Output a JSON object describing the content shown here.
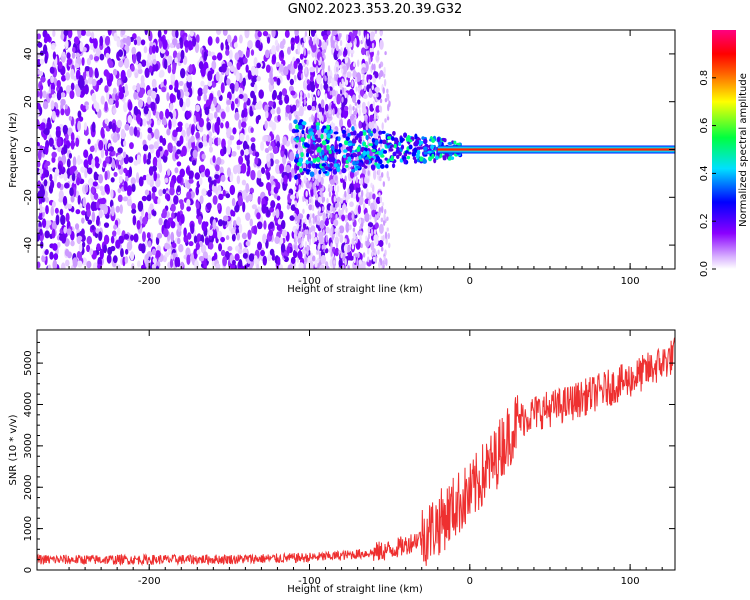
{
  "title": "GN02.2023.353.20.39.G32",
  "colors": {
    "snr_line": "#ee3030",
    "frame": "#000000"
  },
  "chart_data": [
    {
      "type": "heatmap",
      "xlabel": "Height of straight line (km)",
      "ylabel": "Frequency (Hz)",
      "xlim": [
        -270,
        128
      ],
      "ylim": [
        -50,
        50
      ],
      "xticks": [
        -200,
        -100,
        0,
        100
      ],
      "yticks": [
        -40,
        -20,
        0,
        20,
        40
      ],
      "colorbar": {
        "label": "Normalized spectral amplitude",
        "range": [
          0,
          1
        ],
        "ticks": [
          "0.0",
          "0.2",
          "0.4",
          "0.6",
          "0.8"
        ],
        "colormap": "rainbow (white to violet, blue, cyan, green, yellow, red, magenta)"
      },
      "features": {
        "broadband_noise_region_km": [
          -270,
          -55
        ],
        "scattered_noise_region_km": [
          -110,
          -50
        ],
        "signal_onset_km": -110,
        "steady_carrier_km": [
          -20,
          128
        ],
        "carrier_frequency_hz": 0
      }
    },
    {
      "type": "line",
      "xlabel": "Height of straight line (km)",
      "ylabel": "SNR (10 * v/v)",
      "xlim": [
        -270,
        128
      ],
      "ylim": [
        0,
        5800
      ],
      "xticks": [
        -200,
        -100,
        0,
        100
      ],
      "yticks": [
        0,
        1000,
        2000,
        3000,
        4000,
        5000
      ],
      "series": [
        {
          "x": [
            -270,
            -250,
            -200,
            -150,
            -120,
            -100,
            -80,
            -60,
            -50,
            -40,
            -30,
            -20,
            -15,
            -10,
            -5,
            0,
            5,
            10,
            15,
            20,
            25,
            30,
            40,
            60,
            80,
            100,
            110,
            120,
            128
          ],
          "y": [
            250,
            250,
            250,
            260,
            280,
            300,
            350,
            420,
            480,
            600,
            800,
            1100,
            1300,
            1500,
            1700,
            1800,
            2100,
            2400,
            2600,
            3000,
            3300,
            3600,
            3800,
            4000,
            4300,
            4600,
            4800,
            5000,
            5200
          ]
        }
      ]
    }
  ]
}
